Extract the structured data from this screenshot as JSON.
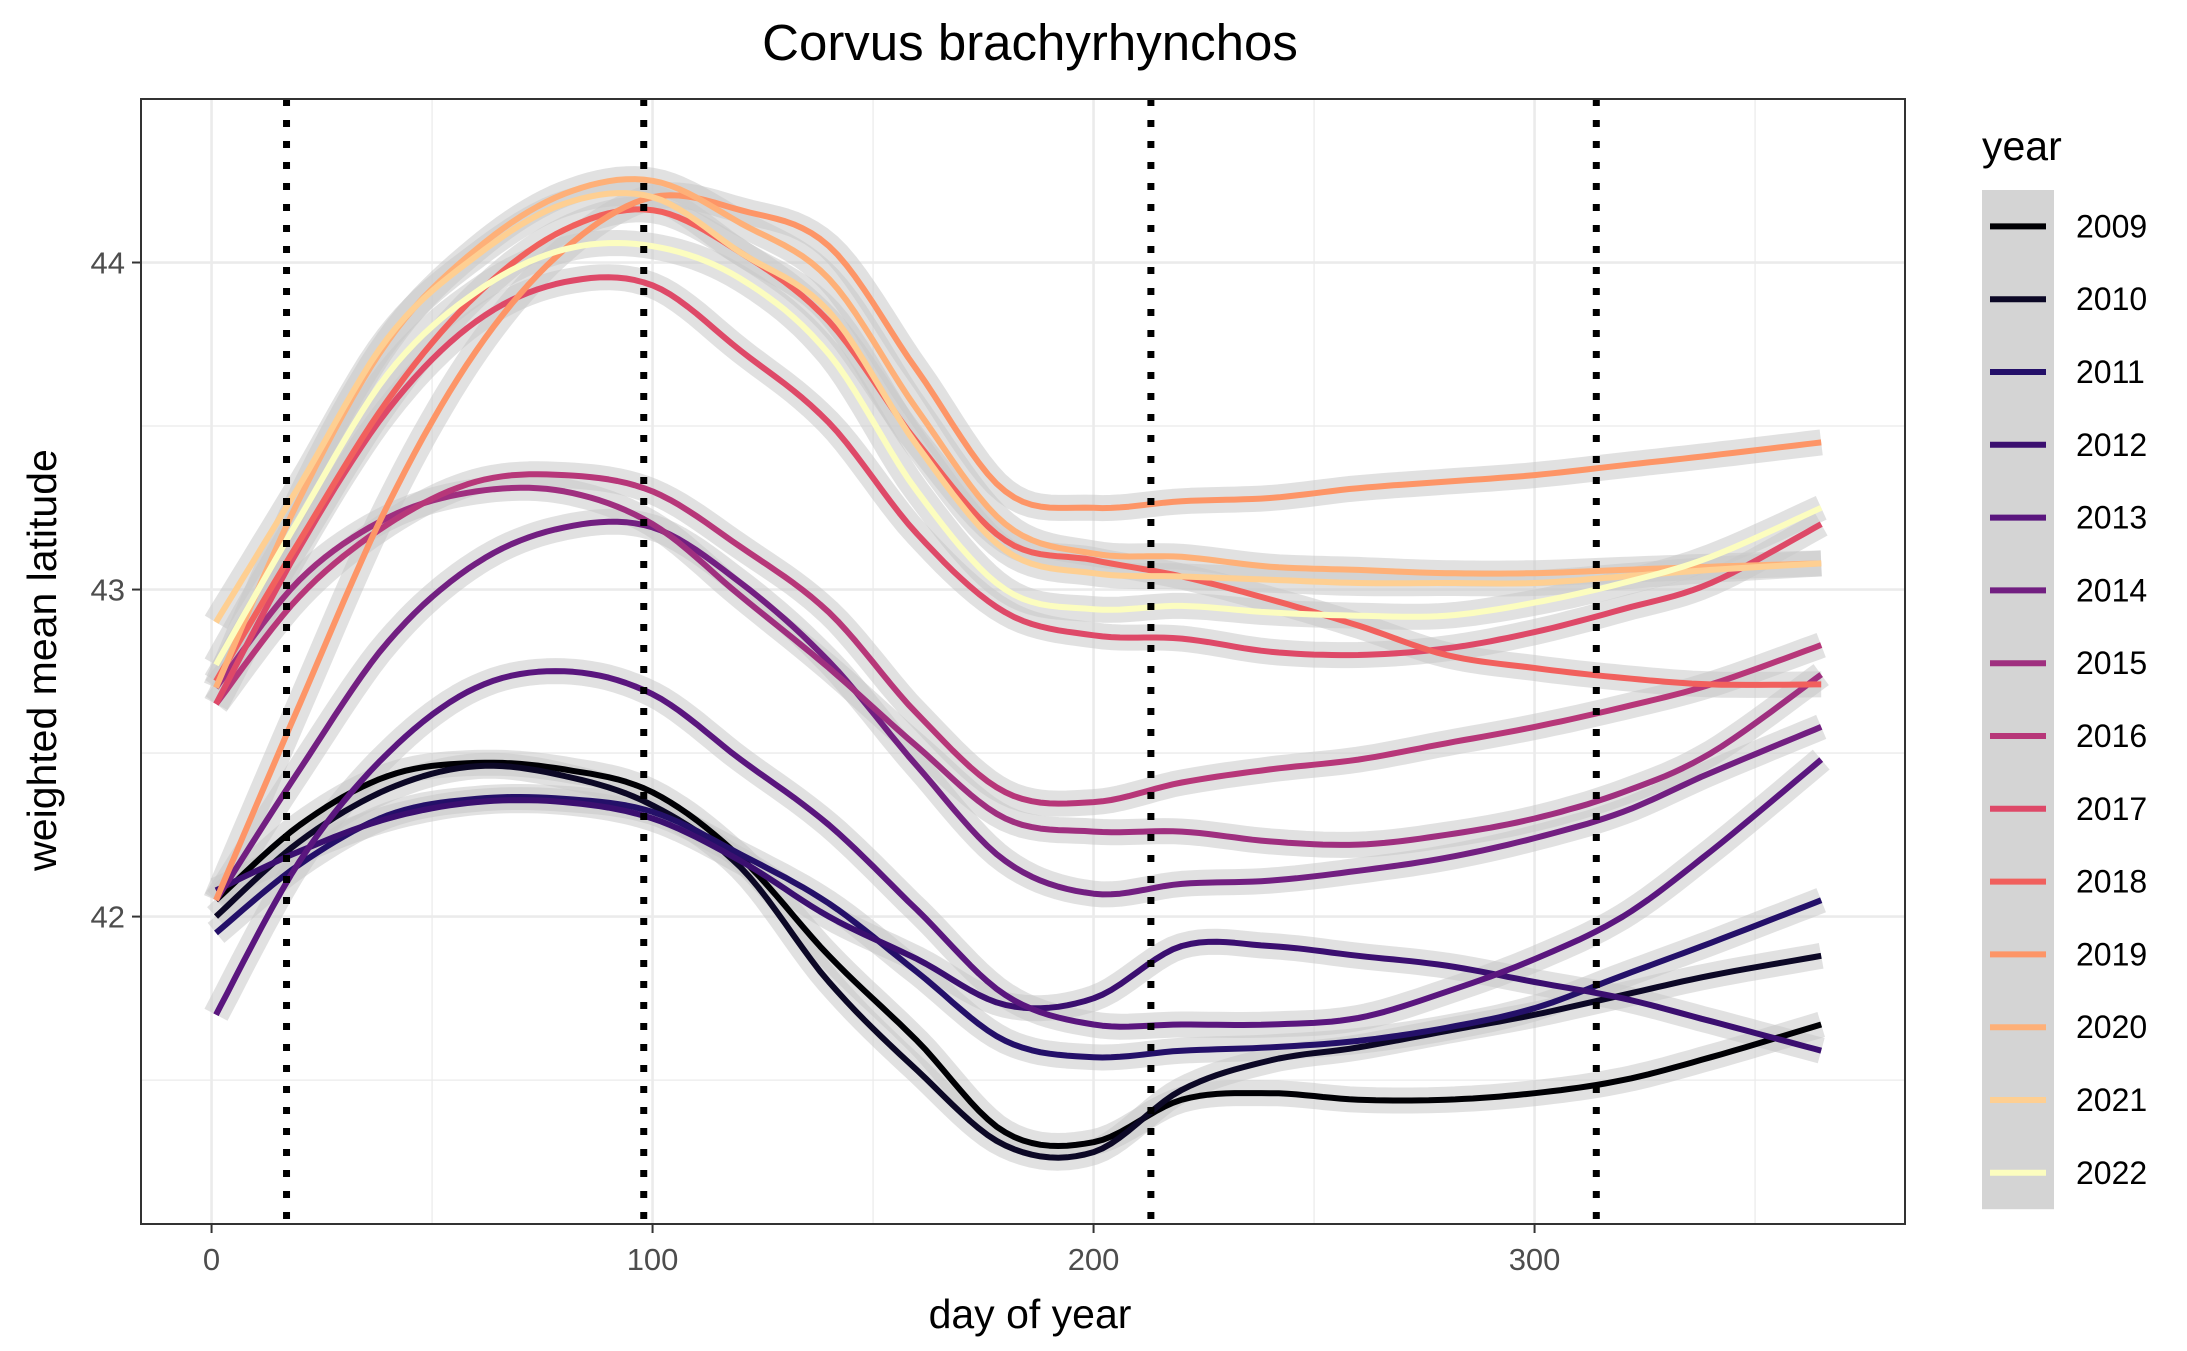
{
  "chart_data": {
    "type": "line",
    "title": "Corvus brachyrhynchos",
    "xlabel": "day of year",
    "ylabel": "weighted mean latitude",
    "xlim": [
      -16,
      384
    ],
    "ylim": [
      41.06,
      44.5
    ],
    "x_ticks": [
      0,
      100,
      200,
      300
    ],
    "y_ticks": [
      42,
      43,
      44
    ],
    "grid": true,
    "legend": {
      "title": "year",
      "placement": "right"
    },
    "reference_lines_x": [
      17,
      98,
      213,
      314
    ],
    "x": [
      1,
      20,
      40,
      60,
      80,
      100,
      120,
      140,
      160,
      180,
      200,
      220,
      240,
      260,
      280,
      300,
      320,
      340,
      365
    ],
    "series": [
      {
        "name": "2009",
        "color": "#000004",
        "values": [
          42.05,
          42.28,
          42.43,
          42.47,
          42.45,
          42.38,
          42.18,
          41.88,
          41.62,
          41.34,
          41.31,
          41.44,
          41.46,
          41.44,
          41.44,
          41.46,
          41.5,
          41.57,
          41.67
        ]
      },
      {
        "name": "2010",
        "color": "#0c0826",
        "values": [
          42.0,
          42.23,
          42.39,
          42.46,
          42.43,
          42.34,
          42.15,
          41.8,
          41.53,
          41.3,
          41.28,
          41.47,
          41.56,
          41.6,
          41.65,
          41.7,
          41.76,
          41.82,
          41.88
        ]
      },
      {
        "name": "2011",
        "color": "#241069",
        "values": [
          41.95,
          42.16,
          42.31,
          42.36,
          42.36,
          42.32,
          42.19,
          42.04,
          41.83,
          41.62,
          41.57,
          41.59,
          41.6,
          41.62,
          41.66,
          41.72,
          41.82,
          41.92,
          42.05
        ]
      },
      {
        "name": "2012",
        "color": "#3b0f70",
        "values": [
          42.08,
          42.2,
          42.3,
          42.35,
          42.35,
          42.3,
          42.17,
          42.0,
          41.87,
          41.73,
          41.75,
          41.91,
          41.91,
          41.88,
          41.85,
          41.8,
          41.75,
          41.68,
          41.59
        ]
      },
      {
        "name": "2013",
        "color": "#5a167e",
        "values": [
          41.7,
          42.17,
          42.5,
          42.7,
          42.75,
          42.68,
          42.48,
          42.28,
          42.02,
          41.76,
          41.67,
          41.67,
          41.67,
          41.69,
          41.77,
          41.87,
          42.0,
          42.2,
          42.48
        ]
      },
      {
        "name": "2014",
        "color": "#721f81",
        "values": [
          42.05,
          42.45,
          42.84,
          43.08,
          43.19,
          43.19,
          43.02,
          42.78,
          42.46,
          42.17,
          42.07,
          42.1,
          42.11,
          42.14,
          42.18,
          42.24,
          42.32,
          42.44,
          42.58
        ]
      },
      {
        "name": "2015",
        "color": "#9f2f7f",
        "values": [
          42.7,
          43.03,
          43.22,
          43.3,
          43.3,
          43.2,
          42.98,
          42.76,
          42.52,
          42.3,
          42.26,
          42.26,
          42.23,
          42.22,
          42.25,
          42.3,
          42.38,
          42.5,
          42.74
        ]
      },
      {
        "name": "2016",
        "color": "#b73779",
        "values": [
          42.65,
          42.98,
          43.2,
          43.33,
          43.35,
          43.3,
          43.13,
          42.93,
          42.62,
          42.38,
          42.35,
          42.41,
          42.45,
          42.48,
          42.53,
          42.58,
          42.64,
          42.71,
          42.83
        ]
      },
      {
        "name": "2017",
        "color": "#de4968",
        "values": [
          42.65,
          43.13,
          43.55,
          43.82,
          43.94,
          43.93,
          43.73,
          43.51,
          43.17,
          42.93,
          42.86,
          42.85,
          42.81,
          42.8,
          42.82,
          42.87,
          42.94,
          43.02,
          43.2
        ]
      },
      {
        "name": "2018",
        "color": "#f1605d",
        "values": [
          42.72,
          43.15,
          43.58,
          43.9,
          44.1,
          44.16,
          44.03,
          43.82,
          43.45,
          43.15,
          43.09,
          43.04,
          42.97,
          42.89,
          42.8,
          42.76,
          42.73,
          42.71,
          42.71
        ]
      },
      {
        "name": "2019",
        "color": "#fd9567",
        "values": [
          42.05,
          42.65,
          43.26,
          43.73,
          44.04,
          44.2,
          44.16,
          44.05,
          43.67,
          43.3,
          43.25,
          43.27,
          43.28,
          43.31,
          43.33,
          43.35,
          43.38,
          43.41,
          43.45
        ]
      },
      {
        "name": "2020",
        "color": "#feb078",
        "values": [
          42.7,
          43.28,
          43.76,
          44.04,
          44.21,
          44.25,
          44.12,
          43.95,
          43.55,
          43.2,
          43.11,
          43.1,
          43.07,
          43.06,
          43.05,
          43.05,
          43.06,
          43.07,
          43.08
        ]
      },
      {
        "name": "2021",
        "color": "#fecf92",
        "values": [
          42.9,
          43.32,
          43.77,
          44.02,
          44.18,
          44.2,
          44.03,
          43.85,
          43.44,
          43.12,
          43.05,
          43.04,
          43.03,
          43.02,
          43.02,
          43.02,
          43.04,
          43.06,
          43.08
        ]
      },
      {
        "name": "2022",
        "color": "#fcfdbf",
        "values": [
          42.77,
          43.22,
          43.66,
          43.91,
          44.04,
          44.05,
          43.95,
          43.72,
          43.3,
          43.0,
          42.94,
          42.95,
          42.93,
          42.92,
          42.92,
          42.96,
          43.02,
          43.1,
          43.25
        ]
      }
    ]
  }
}
